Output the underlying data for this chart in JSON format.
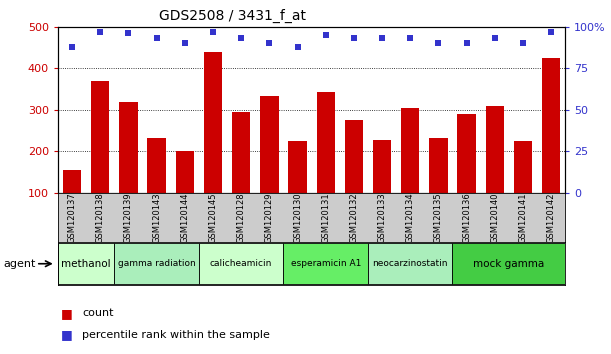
{
  "title": "GDS2508 / 3431_f_at",
  "samples": [
    "GSM120137",
    "GSM120138",
    "GSM120139",
    "GSM120143",
    "GSM120144",
    "GSM120145",
    "GSM120128",
    "GSM120129",
    "GSM120130",
    "GSM120131",
    "GSM120132",
    "GSM120133",
    "GSM120134",
    "GSM120135",
    "GSM120136",
    "GSM120140",
    "GSM120141",
    "GSM120142"
  ],
  "counts": [
    155,
    370,
    318,
    232,
    202,
    440,
    295,
    332,
    226,
    342,
    276,
    227,
    304,
    233,
    289,
    309,
    225,
    425
  ],
  "percentiles": [
    88,
    97,
    96,
    93,
    90,
    97,
    93,
    90,
    88,
    95,
    93,
    93,
    93,
    90,
    90,
    93,
    90,
    97
  ],
  "bar_color": "#cc0000",
  "dot_color": "#3333cc",
  "ylim_left": [
    100,
    500
  ],
  "ylim_right": [
    0,
    100
  ],
  "yticks_left": [
    100,
    200,
    300,
    400,
    500
  ],
  "yticks_right": [
    0,
    25,
    50,
    75,
    100
  ],
  "ytick_labels_right": [
    "0",
    "25",
    "50",
    "75",
    "100%"
  ],
  "grid_values": [
    200,
    300,
    400
  ],
  "agent_groups": [
    {
      "label": "methanol",
      "start": 0,
      "end": 2,
      "color": "#ccffcc"
    },
    {
      "label": "gamma radiation",
      "start": 2,
      "end": 5,
      "color": "#aaeebb"
    },
    {
      "label": "calicheamicin",
      "start": 5,
      "end": 8,
      "color": "#ccffcc"
    },
    {
      "label": "esperamicin A1",
      "start": 8,
      "end": 11,
      "color": "#66ee66"
    },
    {
      "label": "neocarzinostatin",
      "start": 11,
      "end": 14,
      "color": "#aaeebb"
    },
    {
      "label": "mock gamma",
      "start": 14,
      "end": 18,
      "color": "#44cc44"
    }
  ],
  "legend_count_label": "count",
  "legend_pct_label": "percentile rank within the sample",
  "agent_label": "agent",
  "plot_bg": "#ffffff",
  "ticklabel_bg": "#cccccc"
}
